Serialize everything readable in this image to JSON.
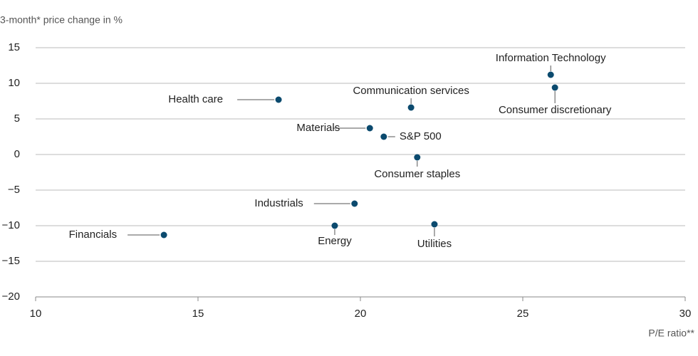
{
  "chart_data": {
    "type": "scatter",
    "y_label": "3-month* price change in %",
    "x_label": "P/E ratio**",
    "labels": [
      "Information Technology",
      "Consumer discretionary",
      "Health care",
      "Communication services",
      "Materials",
      "S&P 500",
      "Consumer staples",
      "Industrials",
      "Financials",
      "Energy",
      "Utilities"
    ],
    "x": [
      25.86,
      25.99,
      17.48,
      21.56,
      20.29,
      20.72,
      21.75,
      19.82,
      13.95,
      19.21,
      22.28
    ],
    "values": [
      11.2,
      9.4,
      7.7,
      6.6,
      3.7,
      2.5,
      -0.4,
      -6.9,
      -11.3,
      -10.0,
      -9.8
    ],
    "color": "#0b4a6e",
    "xlim": [
      10,
      30
    ],
    "xticks": [
      10,
      15,
      20,
      25,
      30
    ],
    "ylim": [
      -20,
      15
    ],
    "yticks": [
      {
        "value": -20,
        "label": "−20"
      },
      {
        "value": -15,
        "label": "−15"
      },
      {
        "value": -10,
        "label": "−10"
      },
      {
        "value": -5,
        "label": "−5"
      },
      0,
      5,
      10,
      15
    ],
    "grid": true
  }
}
